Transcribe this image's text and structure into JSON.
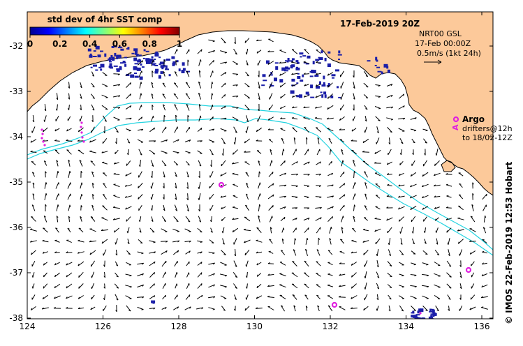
{
  "map": {
    "date_title": "17-Feb-2019 20Z",
    "colorbar": {
      "title": "std dev of 4hr SST comp",
      "ticks": [
        "0",
        "0.2",
        "0.4",
        "0.6",
        "0.8",
        "1"
      ]
    },
    "vector_legend": {
      "line1": "NRT00 GSL",
      "line2": "17-Feb 00:00Z",
      "line3": "0.5m/s (1kt 24h)"
    },
    "argo_legend": {
      "label": "Argo",
      "drifters_line1": "drifters@12h",
      "drifters_line2": "to 18/02-12Z",
      "drifter_marker": "A"
    },
    "x_ticks": [
      "124",
      "126",
      "128",
      "130",
      "132",
      "134",
      "136"
    ],
    "y_ticks": [
      "-32",
      "-33",
      "-34",
      "-35",
      "-36",
      "-37",
      "-38"
    ],
    "credit": "© IMOS 22-Feb-2019 12:53 Hobart",
    "colors": {
      "land": "#fcc99a",
      "bathymetry_contour": "#22d3e0",
      "argo": "#e020e0",
      "sst_patch": "#1b1fa8",
      "arrow": "#000000"
    }
  }
}
